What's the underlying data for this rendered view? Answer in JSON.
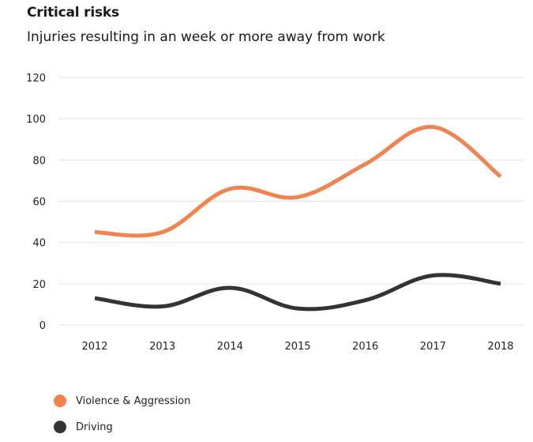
{
  "chart_data": {
    "type": "line",
    "title": "Critical risks",
    "subtitle": "Injuries resulting in an week or more away from work",
    "xlabel": "",
    "ylabel": "",
    "categories": [
      "2012",
      "2013",
      "2014",
      "2015",
      "2016",
      "2017",
      "2018"
    ],
    "ylim": [
      0,
      120
    ],
    "yticks": [
      0,
      20,
      40,
      60,
      80,
      100,
      120
    ],
    "grid": true,
    "legend_position": "bottom-left",
    "series": [
      {
        "name": "Violence & Aggression",
        "color": "#f0834f",
        "values": [
          45,
          45,
          66,
          62,
          78,
          96,
          72
        ]
      },
      {
        "name": "Driving",
        "color": "#333333",
        "values": [
          13,
          9,
          18,
          8,
          12,
          24,
          20
        ]
      }
    ]
  }
}
